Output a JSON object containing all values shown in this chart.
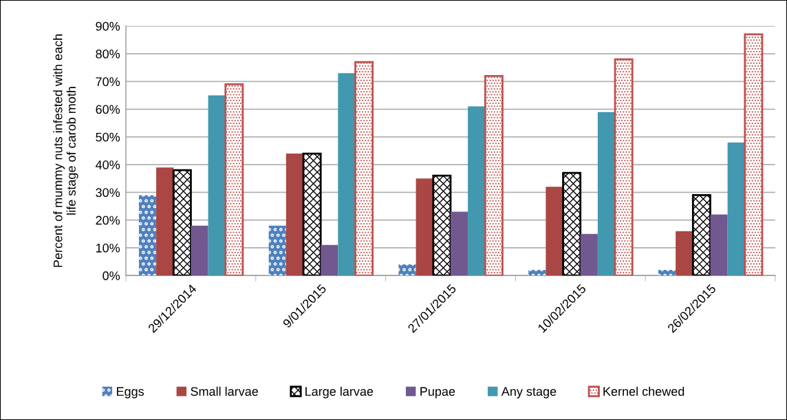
{
  "chart_data": {
    "type": "bar",
    "categories": [
      "29/12/2014",
      "9/01/2015",
      "27/01/2015",
      "10/02/2015",
      "26/02/2015"
    ],
    "ylabel": "Percent of mummy nuts infested with each\nlife stage of carob moth",
    "series": [
      {
        "name": "Eggs",
        "color": "#4f81bd",
        "values": [
          29,
          18,
          4,
          2,
          2
        ]
      },
      {
        "name": "Small larvae",
        "color": "#aa4643",
        "values": [
          39,
          44,
          35,
          32,
          16
        ]
      },
      {
        "name": "Large larvae",
        "color": "#000000",
        "values": [
          38,
          44,
          36,
          37,
          29
        ]
      },
      {
        "name": "Pupae",
        "color": "#71588f",
        "values": [
          18,
          11,
          23,
          15,
          22
        ]
      },
      {
        "name": "Any stage",
        "color": "#4198af",
        "values": [
          65,
          73,
          61,
          59,
          48
        ]
      },
      {
        "name": "Kernel chewed",
        "color": "#c0504d",
        "values": [
          69,
          77,
          72,
          78,
          87
        ]
      }
    ],
    "ylim": [
      0,
      90
    ],
    "yticks": [
      {
        "value": 0,
        "label": "0%"
      },
      {
        "value": 10,
        "label": "10%"
      },
      {
        "value": 20,
        "label": "20%"
      },
      {
        "value": 30,
        "label": "30%"
      },
      {
        "value": 40,
        "label": "40%"
      },
      {
        "value": 50,
        "label": "50%"
      },
      {
        "value": 60,
        "label": "60%"
      },
      {
        "value": 70,
        "label": "70%"
      },
      {
        "value": 80,
        "label": "80%"
      },
      {
        "value": 90,
        "label": "90%"
      }
    ],
    "grid": "y",
    "legend": "bottom"
  }
}
